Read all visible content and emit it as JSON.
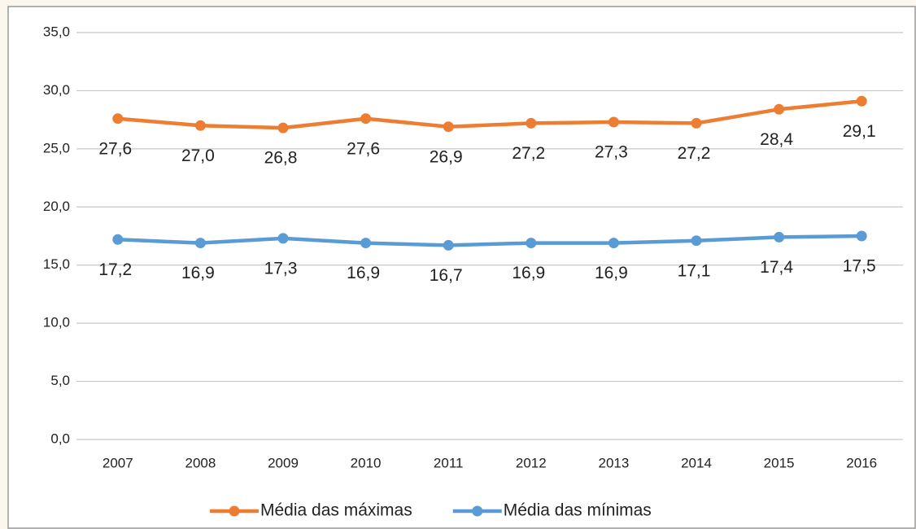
{
  "chart_data": {
    "type": "line",
    "categories": [
      "2007",
      "2008",
      "2009",
      "2010",
      "2011",
      "2012",
      "2013",
      "2014",
      "2015",
      "2016"
    ],
    "series": [
      {
        "name": "Média das máximas",
        "color": "#ed7d31",
        "values": [
          27.6,
          27.0,
          26.8,
          27.6,
          26.9,
          27.2,
          27.3,
          27.2,
          28.4,
          29.1
        ],
        "value_labels": [
          "27,6",
          "27,0",
          "26,8",
          "27,6",
          "26,9",
          "27,2",
          "27,3",
          "27,2",
          "28,4",
          "29,1"
        ]
      },
      {
        "name": "Média das mínimas",
        "color": "#5b9bd5",
        "values": [
          17.2,
          16.9,
          17.3,
          16.9,
          16.7,
          16.9,
          16.9,
          17.1,
          17.4,
          17.5
        ],
        "value_labels": [
          "17,2",
          "16,9",
          "17,3",
          "16,9",
          "16,7",
          "16,9",
          "16,9",
          "17,1",
          "17,4",
          "17,5"
        ]
      }
    ],
    "ylim": [
      0,
      35
    ],
    "yticks": [
      {
        "value": 0,
        "label": "0,0"
      },
      {
        "value": 5,
        "label": "5,0"
      },
      {
        "value": 10,
        "label": "10,0"
      },
      {
        "value": 15,
        "label": "15,0"
      },
      {
        "value": 20,
        "label": "20,0"
      },
      {
        "value": 25,
        "label": "25,0"
      },
      {
        "value": 30,
        "label": "30,0"
      },
      {
        "value": 35,
        "label": "35,0"
      }
    ],
    "grid": true,
    "legend": "bottom"
  }
}
